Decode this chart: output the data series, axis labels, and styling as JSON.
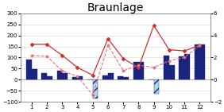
{
  "title": "Braunlage",
  "months": [
    1,
    2,
    3,
    4,
    5,
    6,
    7,
    8,
    9,
    10,
    11,
    12
  ],
  "bar1": [
    90,
    30,
    40,
    10,
    0,
    20,
    15,
    80,
    0,
    110,
    105,
    160
  ],
  "bar2": [
    48,
    15,
    30,
    15,
    -85,
    30,
    10,
    80,
    -65,
    65,
    115,
    160
  ],
  "line1": [
    160,
    160,
    110,
    55,
    20,
    185,
    95,
    55,
    245,
    135,
    130,
    155
  ],
  "line2": [
    110,
    105,
    40,
    15,
    -70,
    155,
    40,
    65,
    55,
    85,
    100,
    155
  ],
  "bar1_pos_color": "#1a237e",
  "bar1_neg_color": "#add8e6",
  "bar2_pos_color": "#1a237e",
  "bar2_neg_color": "#add8e6",
  "bar2_hatch": "///",
  "line1_color": "#d32f2f",
  "line2_color": "#e57373",
  "line1_style": "-",
  "line2_style": "--",
  "ylim_left": [
    -100,
    300
  ],
  "ylim_right": [
    -2,
    6
  ],
  "yticks_left": [
    -100,
    -50,
    0,
    50,
    100,
    150,
    200,
    250,
    300
  ],
  "yticks_right": [
    -2,
    0,
    2,
    4,
    6
  ],
  "title_fontsize": 10,
  "axis_fontsize": 5,
  "bg_color": "#ffffff",
  "grid_color": "#dddddd"
}
